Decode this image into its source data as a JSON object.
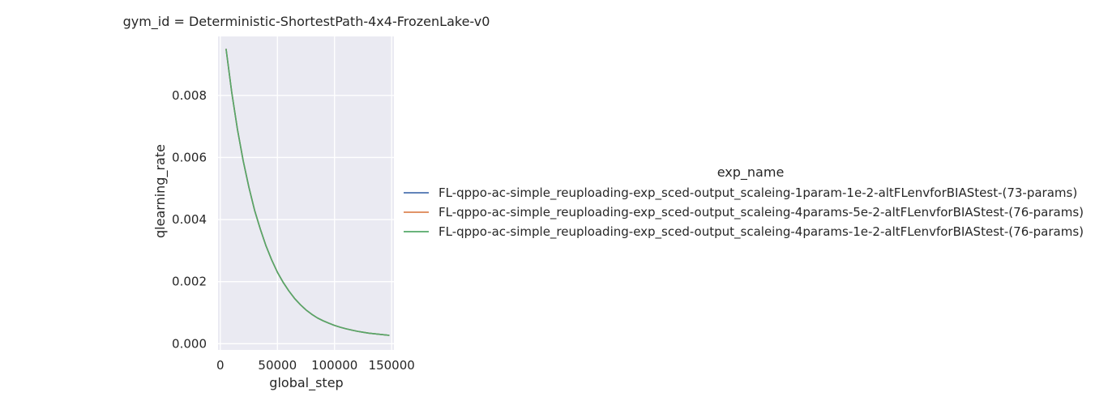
{
  "chart_data": {
    "type": "line",
    "title": "gym_id = Deterministic-ShortestPath-4x4-FrozenLake-v0",
    "xlabel": "global_step",
    "ylabel": "qlearning_rate",
    "xlim": [
      -2000,
      152000
    ],
    "ylim": [
      -0.0002,
      0.0099
    ],
    "xticks": [
      0,
      50000,
      100000,
      150000
    ],
    "xtick_labels": [
      "0",
      "50000",
      "100000",
      "150000"
    ],
    "yticks": [
      0.0,
      0.002,
      0.004,
      0.006,
      0.008
    ],
    "ytick_labels": [
      "0.000",
      "0.002",
      "0.004",
      "0.006",
      "0.008"
    ],
    "grid": true,
    "legend_position": "right",
    "legend_title": "exp_name",
    "x": [
      5000,
      10000,
      15000,
      20000,
      25000,
      30000,
      35000,
      40000,
      45000,
      50000,
      55000,
      60000,
      65000,
      70000,
      75000,
      80000,
      85000,
      90000,
      95000,
      100000,
      105000,
      110000,
      115000,
      120000,
      125000,
      130000,
      135000,
      140000,
      145000,
      148000
    ],
    "series": [
      {
        "name": "FL-qppo-ac-simple_reuploading-exp_sced-output_scaleing-1param-1e-2-altFLenvforBIAStest-(73-params)",
        "color": "#4c72b0",
        "values": [
          0.0095,
          0.0081,
          0.0069,
          0.0059,
          0.00505,
          0.0043,
          0.0037,
          0.00315,
          0.0027,
          0.0023,
          0.00198,
          0.0017,
          0.00146,
          0.00126,
          0.00109,
          0.00095,
          0.00083,
          0.00074,
          0.00066,
          0.00059,
          0.00053,
          0.00048,
          0.00044,
          0.0004,
          0.00037,
          0.00034,
          0.00032,
          0.0003,
          0.00028,
          0.00027
        ]
      },
      {
        "name": "FL-qppo-ac-simple_reuploading-exp_sced-output_scaleing-4params-5e-2-altFLenvforBIAStest-(76-params)",
        "color": "#dd8452",
        "values": [
          0.0095,
          0.0081,
          0.0069,
          0.0059,
          0.00505,
          0.0043,
          0.0037,
          0.00315,
          0.0027,
          0.0023,
          0.00198,
          0.0017,
          0.00146,
          0.00126,
          0.00109,
          0.00095,
          0.00083,
          0.00074,
          0.00066,
          0.00059,
          0.00053,
          0.00048,
          0.00044,
          0.0004,
          0.00037,
          0.00034,
          0.00032,
          0.0003,
          0.00028,
          0.00027
        ]
      },
      {
        "name": "FL-qppo-ac-simple_reuploading-exp_sced-output_scaleing-4params-1e-2-altFLenvforBIAStest-(76-params)",
        "color": "#55a868",
        "values": [
          0.0095,
          0.0081,
          0.0069,
          0.0059,
          0.00505,
          0.0043,
          0.0037,
          0.00315,
          0.0027,
          0.0023,
          0.00198,
          0.0017,
          0.00146,
          0.00126,
          0.00109,
          0.00095,
          0.00083,
          0.00074,
          0.00066,
          0.00059,
          0.00053,
          0.00048,
          0.00044,
          0.0004,
          0.00037,
          0.00034,
          0.00032,
          0.0003,
          0.00028,
          0.00027
        ]
      }
    ]
  }
}
